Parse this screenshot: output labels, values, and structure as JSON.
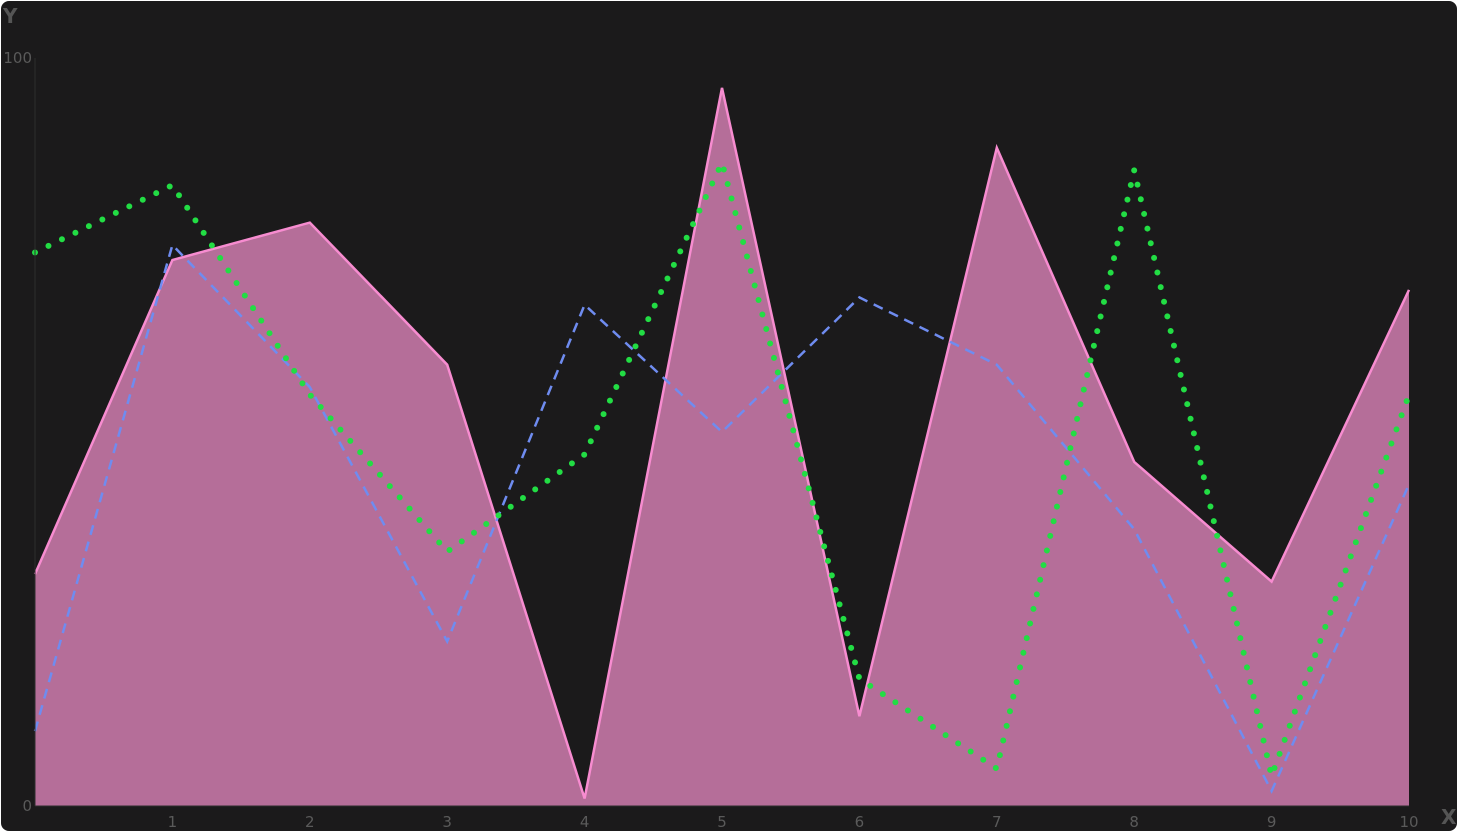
{
  "chart_data": {
    "type": "area",
    "xlabel": "X",
    "ylabel": "Y",
    "x": [
      0,
      1,
      2,
      3,
      4,
      5,
      6,
      7,
      8,
      9,
      10
    ],
    "x_tick_labels": [
      "1",
      "2",
      "3",
      "4",
      "5",
      "6",
      "7",
      "8",
      "9",
      "10"
    ],
    "y_tick_labels": [
      "0",
      "100"
    ],
    "xlim": [
      0,
      10
    ],
    "ylim": [
      0,
      100
    ],
    "grid": false,
    "legend": "none",
    "series": [
      {
        "style": "area",
        "color": "#f78cd0",
        "fill": "#b56e99",
        "values": [
          31,
          73,
          78,
          59,
          1,
          96,
          12,
          88,
          46,
          30,
          69
        ]
      },
      {
        "style": "dashed",
        "color": "#6f8cf0",
        "values": [
          10,
          75,
          56,
          22,
          67,
          50,
          68,
          59,
          37,
          2,
          43
        ]
      },
      {
        "style": "dotted",
        "color": "#22dd44",
        "values": [
          74,
          83,
          55,
          34,
          47,
          86,
          17,
          5,
          85,
          4,
          55
        ]
      }
    ]
  }
}
